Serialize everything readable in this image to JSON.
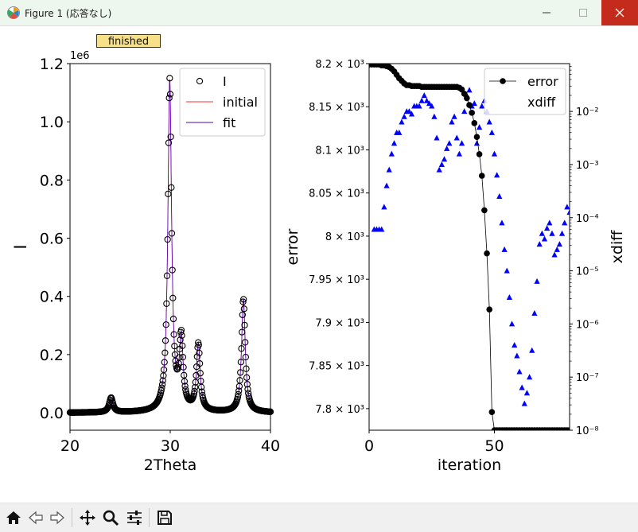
{
  "window": {
    "title": "Figure 1 (応答なし)",
    "minimize_label": "—",
    "maximize_label": "☐",
    "close_label": "✕"
  },
  "status_label": "finished",
  "colors": {
    "titlebar": "#eef7ee",
    "close": "#c42b1c",
    "status_bg": "#f6e08a",
    "initial": "#ff3030",
    "fit": "#5000c0",
    "error": "#000000",
    "xdiff": "#0000ff"
  },
  "toolbar": {
    "items": [
      "home-icon",
      "back-icon",
      "forward-icon",
      "pan-icon",
      "zoom-icon",
      "configure-icon",
      "save-icon"
    ]
  },
  "chart_data": [
    {
      "type": "scatter",
      "xlabel": "2Theta",
      "ylabel": "I",
      "offset_label": "1e6",
      "xlim": [
        20,
        40
      ],
      "ylim": [
        -0.06,
        1.2
      ],
      "xticks": [
        "20",
        "30",
        "40"
      ],
      "yticks": [
        "0.0",
        "0.2",
        "0.4",
        "0.6",
        "0.8",
        "1.0",
        "1.2"
      ],
      "legend": [
        "I",
        "initial",
        "fit"
      ],
      "legend_position": "top-right",
      "peaks": [
        {
          "center": 24.1,
          "height": 0.05
        },
        {
          "center": 29.95,
          "height": 1.14
        },
        {
          "center": 31.1,
          "height": 0.24
        },
        {
          "center": 32.8,
          "height": 0.23
        },
        {
          "center": 37.3,
          "height": 0.39
        }
      ],
      "baseline": 0.0
    },
    {
      "type": "scatter",
      "xlabel": "iteration",
      "ylabel": "error",
      "y2label": "xdiff",
      "xlim": [
        0,
        80
      ],
      "ylim": [
        7775,
        8200
      ],
      "y2lim_log10": [
        -8,
        -1.1
      ],
      "xticks": [
        "0",
        "50"
      ],
      "yticks": [
        "7.8 × 10³",
        "7.85 × 10³",
        "7.9 × 10³",
        "7.95 × 10³",
        "8 × 10³",
        "8.05 × 10³",
        "8.1 × 10³",
        "8.15 × 10³",
        "8.2 × 10³"
      ],
      "y2ticks": [
        "10⁻⁸",
        "10⁻⁷",
        "10⁻⁶",
        "10⁻⁵",
        "10⁻⁴",
        "10⁻³",
        "10⁻²"
      ],
      "legend": [
        "error",
        "xdiff"
      ],
      "legend_position": "top-right",
      "series": [
        {
          "name": "error",
          "axis": "left",
          "x": [
            0,
            1,
            2,
            3,
            4,
            5,
            6,
            7,
            8,
            9,
            10,
            11,
            12,
            13,
            14,
            15,
            16,
            17,
            18,
            19,
            20,
            21,
            22,
            23,
            24,
            25,
            26,
            27,
            28,
            29,
            30,
            31,
            32,
            33,
            34,
            35,
            36,
            37,
            38,
            39,
            40,
            41,
            42,
            43,
            44,
            45,
            46,
            47,
            48,
            49,
            50,
            51,
            52,
            53,
            54,
            55,
            56,
            57,
            58,
            59,
            60,
            61,
            62,
            63,
            64,
            65,
            66,
            67,
            68,
            69,
            70,
            71,
            72,
            73,
            74,
            75,
            76,
            77,
            78,
            79,
            80
          ],
          "y": [
            8199,
            8199,
            8199,
            8199,
            8199,
            8198,
            8198,
            8197,
            8196,
            8194,
            8191,
            8187,
            8183,
            8180,
            8177,
            8175,
            8175,
            8174,
            8174,
            8174,
            8174,
            8173,
            8173,
            8173,
            8173,
            8173,
            8173,
            8173,
            8173,
            8173,
            8173,
            8173,
            8173,
            8173,
            8173,
            8173,
            8172,
            8170,
            8165,
            8160,
            8152,
            8143,
            8131,
            8115,
            8095,
            8070,
            8030,
            7980,
            7915,
            7796,
            7775,
            7775,
            7775,
            7775,
            7775,
            7775,
            7775,
            7775,
            7775,
            7775,
            7775,
            7775,
            7775,
            7775,
            7775,
            7775,
            7775,
            7775,
            7775,
            7775,
            7775,
            7775,
            7775,
            7775,
            7775,
            7775,
            7775,
            7775,
            7775,
            7775,
            7775
          ]
        },
        {
          "name": "xdiff",
          "axis": "right",
          "x": [
            2,
            3,
            4,
            5,
            6,
            7,
            8,
            9,
            10,
            11,
            12,
            13,
            14,
            15,
            16,
            17,
            18,
            19,
            20,
            21,
            22,
            23,
            24,
            25,
            26,
            27,
            28,
            29,
            30,
            31,
            32,
            33,
            34,
            35,
            36,
            37,
            38,
            39,
            40,
            41,
            42,
            43,
            44,
            45,
            46,
            47,
            48,
            49,
            50,
            51,
            52,
            53,
            54,
            55,
            56,
            57,
            58,
            59,
            60,
            61,
            62,
            63,
            64,
            65,
            66,
            67,
            68,
            69,
            70,
            71,
            72,
            73,
            74,
            75,
            76,
            77,
            78,
            79,
            80
          ],
          "log10y": [
            -4.22,
            -4.22,
            -4.22,
            -4.22,
            -3.8,
            -3.4,
            -3.1,
            -2.8,
            -2.6,
            -2.4,
            -2.4,
            -2.2,
            -2.1,
            -2.0,
            -2.0,
            -2.05,
            -1.9,
            -1.9,
            -1.9,
            -1.8,
            -1.7,
            -1.8,
            -1.85,
            -1.9,
            -2.1,
            -2.5,
            -3.1,
            -3.0,
            -2.9,
            -2.7,
            -2.6,
            -2.2,
            -2.1,
            -2.5,
            -2.8,
            -2.6,
            -2.0,
            -1.7,
            -1.6,
            -1.9,
            -1.85,
            -2.6,
            -2.3,
            -1.9,
            -1.8,
            -2.0,
            -2.2,
            -2.4,
            -2.8,
            -3.2,
            -3.6,
            -4.1,
            -4.6,
            -5.0,
            -5.5,
            -6.0,
            -6.4,
            -6.6,
            -6.9,
            -7.2,
            -7.5,
            -7.3,
            -7.0,
            -6.5,
            -5.8,
            -5.2,
            -4.5,
            -4.3,
            -4.4,
            -4.2,
            -4.1,
            -4.3,
            -4.7,
            -4.6,
            -4.5,
            -4.3,
            -4.1,
            -3.8,
            -3.9
          ]
        }
      ]
    }
  ]
}
